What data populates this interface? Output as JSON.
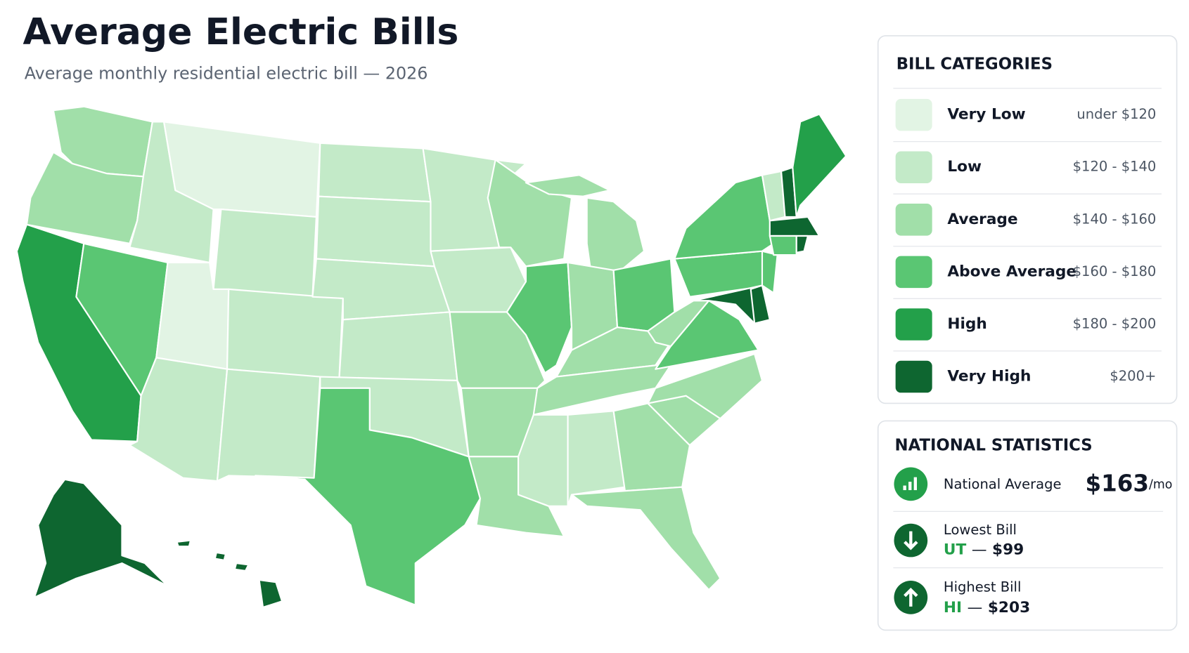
{
  "header": {
    "title": "Average Electric Bills",
    "subtitle": "Average monthly residential electric bill — 2026"
  },
  "legend": {
    "title": "BILL CATEGORIES",
    "items": [
      {
        "label": "Very Low",
        "range": "under $120",
        "color": "#e2f4e4"
      },
      {
        "label": "Low",
        "range": "$120 - $140",
        "color": "#c3eac8"
      },
      {
        "label": "Average",
        "range": "$140 - $160",
        "color": "#a1dfa9"
      },
      {
        "label": "Above Average",
        "range": "$160 - $180",
        "color": "#5ac673"
      },
      {
        "label": "High",
        "range": "$180 - $200",
        "color": "#23a04a"
      },
      {
        "label": "Very High",
        "range": "$200+",
        "color": "#0e6630"
      }
    ]
  },
  "stats": {
    "title": "NATIONAL STATISTICS",
    "items": [
      {
        "label": "National Average",
        "value": "$163",
        "unit": "/mo"
      },
      {
        "label": "Lowest Bill",
        "state": "UT",
        "sep": "—",
        "value": "$99"
      },
      {
        "label": "Highest Bill",
        "state": "HI",
        "sep": "—",
        "value": "$203"
      }
    ]
  }
}
